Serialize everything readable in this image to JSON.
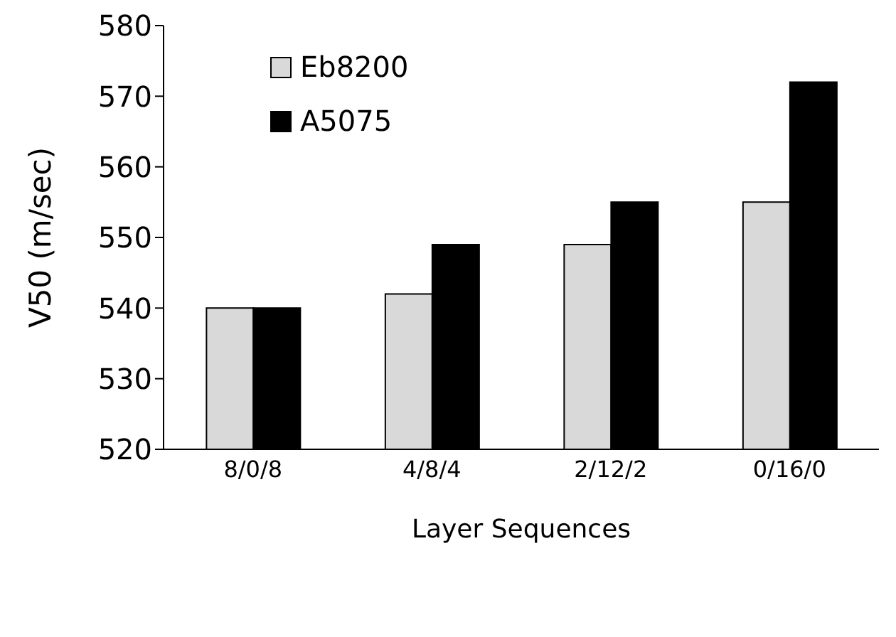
{
  "chart_data": {
    "type": "bar",
    "xlabel": "Layer Sequences",
    "ylabel": "V50 (m/sec)",
    "categories": [
      "8/0/8",
      "4/8/4",
      "2/12/2",
      "0/16/0"
    ],
    "series": [
      {
        "name": "Eb8200",
        "color": "#d9d9d9",
        "values": [
          540,
          542,
          549,
          555
        ]
      },
      {
        "name": "A5075",
        "color": "#000000",
        "values": [
          540,
          549,
          555,
          572
        ]
      }
    ],
    "ylim": [
      520,
      580
    ],
    "yticks": [
      520,
      530,
      540,
      550,
      560,
      570,
      580
    ],
    "legend": "top left"
  }
}
